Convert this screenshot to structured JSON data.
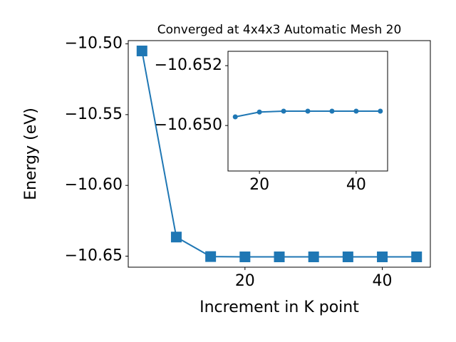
{
  "chart_data": [
    {
      "type": "line",
      "title": "Converged at 4x4x3 Automatic Mesh 20",
      "xlabel": "Increment in K point",
      "ylabel": "Energy (eV)",
      "x": [
        5,
        10,
        15,
        20,
        25,
        30,
        35,
        40,
        45
      ],
      "series": [
        {
          "color": "#1f77b4",
          "marker": "square",
          "values": [
            -10.505,
            -10.6365,
            -10.6503,
            -10.6505,
            -10.6505,
            -10.6505,
            -10.6505,
            -10.6505,
            -10.6505
          ]
        }
      ],
      "xlim": [
        3,
        47
      ],
      "ylim": [
        -10.6578,
        -10.4977
      ],
      "xticks": [
        20,
        40
      ],
      "yticks": [
        {
          "value": -10.5,
          "label": "−10.50"
        },
        {
          "value": -10.55,
          "label": "−10.55"
        },
        {
          "value": -10.6,
          "label": "−10.60"
        },
        {
          "value": -10.65,
          "label": "−10.65"
        }
      ]
    },
    {
      "type": "line",
      "x": [
        15,
        20,
        25,
        30,
        35,
        40,
        45
      ],
      "series": [
        {
          "color": "#1f77b4",
          "marker": "circle",
          "values": [
            -10.65029,
            -10.65045,
            -10.65048,
            -10.65048,
            -10.65048,
            -10.65048,
            -10.65048
          ]
        }
      ],
      "xlim": [
        13.5,
        46.5
      ],
      "ylim": [
        -10.64848,
        -10.65248
      ],
      "xticks": [
        20,
        40
      ],
      "yticks": [
        {
          "value": -10.652,
          "label": "−10.652"
        },
        {
          "value": -10.65,
          "label": "−10.650"
        }
      ]
    }
  ]
}
